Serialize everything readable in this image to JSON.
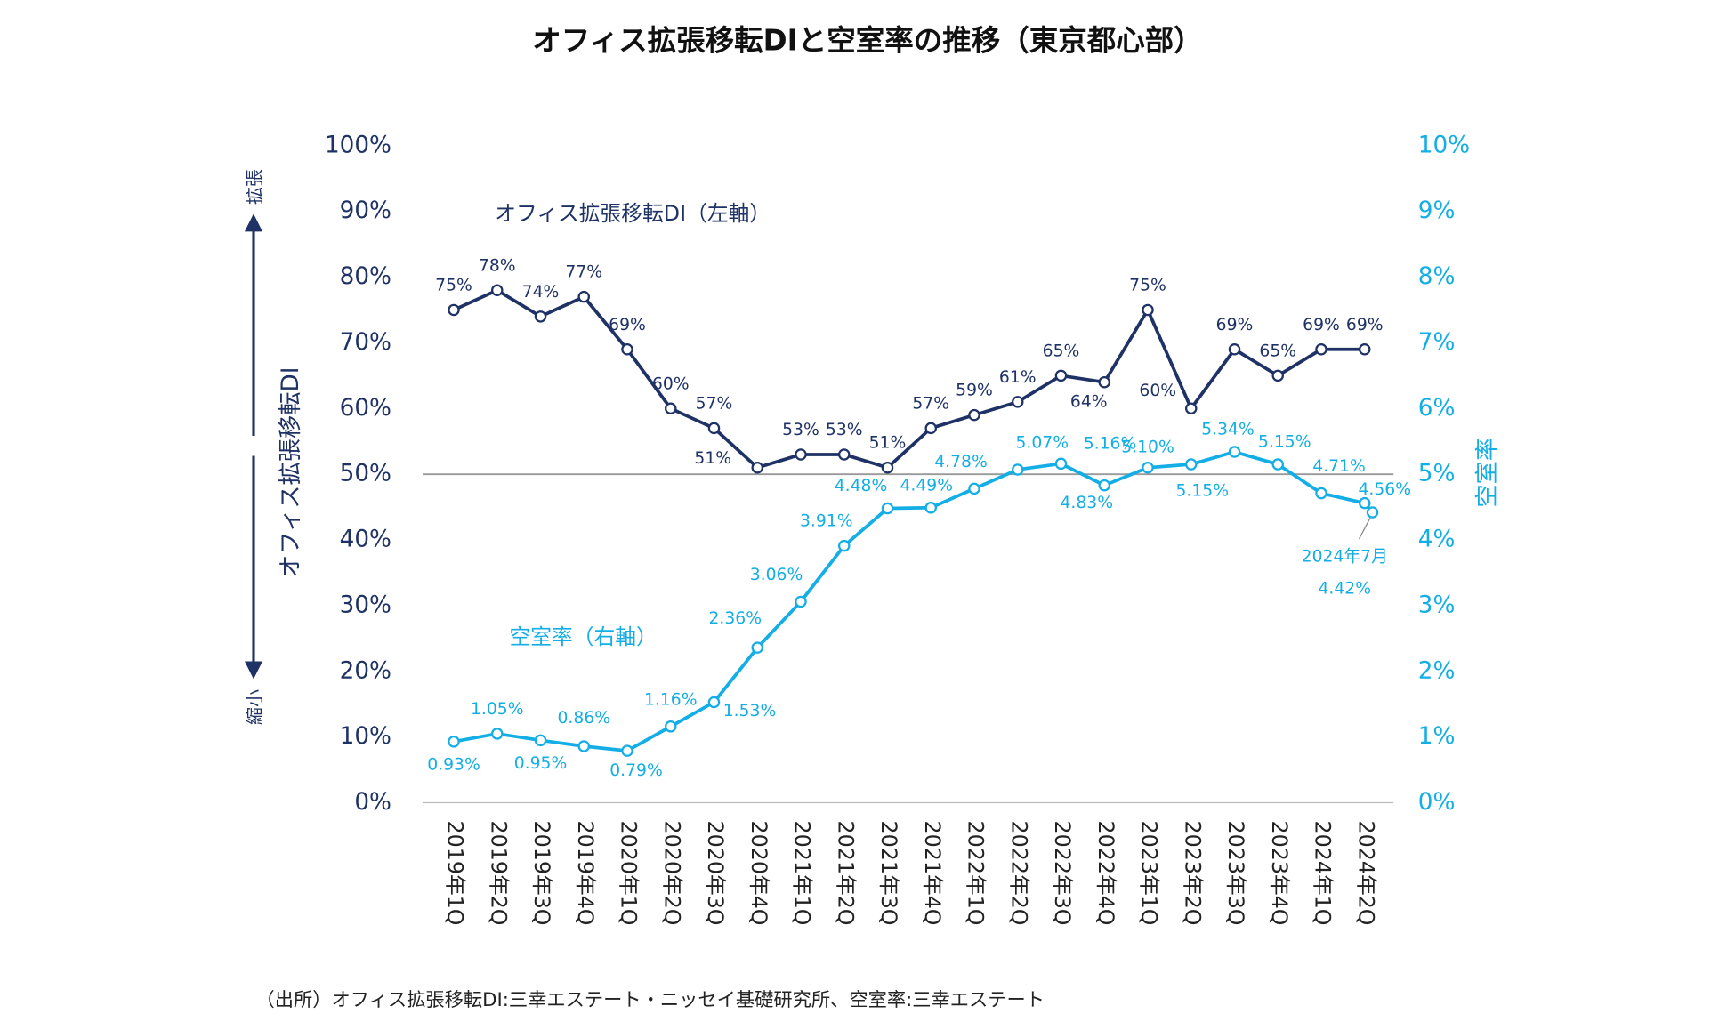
{
  "chart_data": {
    "type": "line",
    "title": "オフィス拡張移転DIと空室率の推移（東京都心部）",
    "source": "（出所）オフィス拡張移転DI:三幸エステート・ニッセイ基礎研究所、空室率:三幸エステート",
    "categories": [
      "2019年1Q",
      "2019年2Q",
      "2019年3Q",
      "2019年4Q",
      "2020年1Q",
      "2020年2Q",
      "2020年3Q",
      "2020年4Q",
      "2021年1Q",
      "2021年2Q",
      "2021年3Q",
      "2021年4Q",
      "2022年1Q",
      "2022年2Q",
      "2022年3Q",
      "2022年4Q",
      "2023年1Q",
      "2023年2Q",
      "2023年3Q",
      "2023年4Q",
      "2024年1Q",
      "2024年2Q"
    ],
    "series": [
      {
        "name": "オフィス拡張移転DI（左軸）",
        "color": "#1f3266",
        "values": [
          75,
          78,
          74,
          77,
          69,
          60,
          57,
          51,
          53,
          53,
          51,
          57,
          59,
          61,
          65,
          64,
          75,
          60,
          69,
          65,
          69,
          69
        ],
        "value_labels": [
          "75%",
          "78%",
          "74%",
          "77%",
          "69%",
          "60%",
          "57%",
          "51%",
          "53%",
          "53%",
          "51%",
          "57%",
          "59%",
          "61%",
          "65%",
          "64%",
          "75%",
          "60%",
          "69%",
          "65%",
          "69%",
          "69%"
        ]
      },
      {
        "name": "空室率（右軸）",
        "color": "#14aee6",
        "axis": "y2",
        "values": [
          0.93,
          1.05,
          0.95,
          0.86,
          0.79,
          1.16,
          1.53,
          2.36,
          3.06,
          3.91,
          4.48,
          4.49,
          4.78,
          5.07,
          5.16,
          4.83,
          5.1,
          5.15,
          5.34,
          5.15,
          4.71,
          4.56
        ],
        "value_labels": [
          "0.93%",
          "1.05%",
          "0.95%",
          "0.86%",
          "0.79%",
          "1.16%",
          "1.53%",
          "2.36%",
          "3.06%",
          "3.91%",
          "4.48%",
          "4.49%",
          "4.78%",
          "5.07%",
          "5.16%",
          "4.83%",
          "5.10%",
          "5.15%",
          "5.34%",
          "5.15%",
          "4.71%",
          "4.56%"
        ]
      }
    ],
    "latest": {
      "label": "2024年7月",
      "value": 4.42,
      "value_label": "4.42%"
    },
    "ylabel": "オフィス拡張移転DI",
    "y_up_label": "拡張",
    "y_down_label": "縮小",
    "y2label": "空室率",
    "ylim": [
      0,
      100
    ],
    "yticks": [
      {
        "value": 0,
        "label": "0%"
      },
      {
        "value": 10,
        "label": "10%"
      },
      {
        "value": 20,
        "label": "20%"
      },
      {
        "value": 30,
        "label": "30%"
      },
      {
        "value": 40,
        "label": "40%"
      },
      {
        "value": 50,
        "label": "50%"
      },
      {
        "value": 60,
        "label": "60%"
      },
      {
        "value": 70,
        "label": "70%"
      },
      {
        "value": 80,
        "label": "80%"
      },
      {
        "value": 90,
        "label": "90%"
      },
      {
        "value": 100,
        "label": "100%"
      }
    ],
    "y2lim": [
      0,
      10
    ],
    "y2ticks": [
      {
        "value": 0,
        "label": "0%"
      },
      {
        "value": 1,
        "label": "1%"
      },
      {
        "value": 2,
        "label": "2%"
      },
      {
        "value": 3,
        "label": "3%"
      },
      {
        "value": 4,
        "label": "4%"
      },
      {
        "value": 5,
        "label": "5%"
      },
      {
        "value": 6,
        "label": "6%"
      },
      {
        "value": 7,
        "label": "7%"
      },
      {
        "value": 8,
        "label": "8%"
      },
      {
        "value": 9,
        "label": "9%"
      },
      {
        "value": 10,
        "label": "10%"
      }
    ],
    "hline": 50
  }
}
